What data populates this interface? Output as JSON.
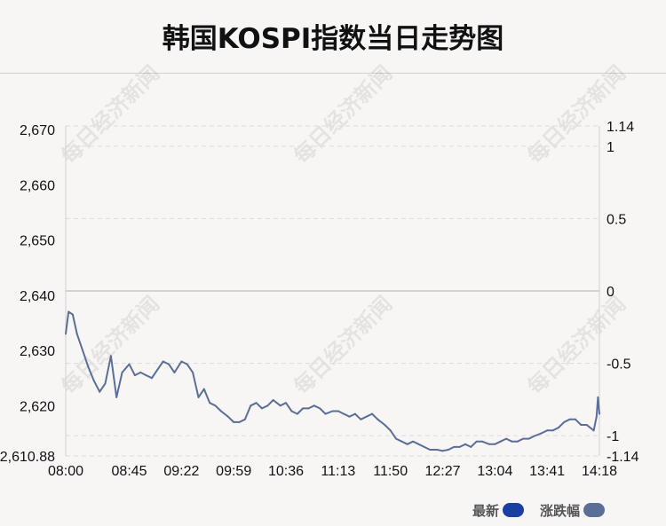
{
  "title": "韩国KOSPI指数当日走势图",
  "watermark": "每日经济新闻",
  "legend": [
    {
      "label": "最新",
      "color": "#1a3fa3"
    },
    {
      "label": "涨跌幅",
      "color": "#5b6f96"
    }
  ],
  "chart_data": {
    "type": "line",
    "title": "韩国KOSPI指数当日走势图",
    "x_ticks": [
      "08:00",
      "08:45",
      "09:22",
      "09:59",
      "10:36",
      "11:13",
      "11:50",
      "12:27",
      "13:04",
      "13:41",
      "14:18"
    ],
    "y_left_ticks": [
      "2,670",
      "2,660",
      "2,650",
      "2,640",
      "2,630",
      "2,620",
      "2,610.88"
    ],
    "y_right_ticks": [
      "1.14",
      "1",
      "0.5",
      "0",
      "-0.5",
      "-1",
      "-1.14"
    ],
    "ylim": [
      2610.88,
      2670.68
    ],
    "ylim_right": [
      -1.14,
      1.14
    ],
    "prev_close": 2640.78,
    "grid": true,
    "legend_position": "bottom-right",
    "series": [
      {
        "name": "最新",
        "color": "#5b6f96",
        "x": [
          "08:00",
          "08:02",
          "08:05",
          "08:08",
          "08:12",
          "08:16",
          "08:20",
          "08:24",
          "08:28",
          "08:32",
          "08:36",
          "08:40",
          "08:45",
          "08:49",
          "08:53",
          "08:57",
          "09:01",
          "09:05",
          "09:09",
          "09:13",
          "09:17",
          "09:22",
          "09:26",
          "09:30",
          "09:34",
          "09:38",
          "09:42",
          "09:46",
          "09:50",
          "09:55",
          "09:59",
          "10:03",
          "10:07",
          "10:11",
          "10:15",
          "10:19",
          "10:23",
          "10:27",
          "10:32",
          "10:36",
          "10:40",
          "10:44",
          "10:48",
          "10:52",
          "10:56",
          "11:00",
          "11:04",
          "11:09",
          "11:13",
          "11:17",
          "11:21",
          "11:25",
          "11:29",
          "11:33",
          "11:37",
          "11:41",
          "11:46",
          "11:50",
          "11:54",
          "11:58",
          "12:02",
          "12:06",
          "12:10",
          "12:14",
          "12:18",
          "12:23",
          "12:27",
          "12:31",
          "12:35",
          "12:39",
          "12:43",
          "12:47",
          "12:51",
          "12:55",
          "13:00",
          "13:04",
          "13:08",
          "13:12",
          "13:16",
          "13:20",
          "13:24",
          "13:28",
          "13:32",
          "13:37",
          "13:41",
          "13:45",
          "13:49",
          "13:53",
          "13:57",
          "14:01",
          "14:05",
          "14:09",
          "14:14",
          "14:16",
          "14:17",
          "14:18"
        ],
        "values": [
          2633.0,
          2637.0,
          2636.5,
          2633.0,
          2630.0,
          2627.0,
          2624.5,
          2622.5,
          2624.0,
          2629.0,
          2621.5,
          2626.0,
          2627.5,
          2625.5,
          2626.0,
          2625.5,
          2625.0,
          2626.5,
          2628.0,
          2627.5,
          2626.0,
          2628.0,
          2627.5,
          2626.0,
          2621.5,
          2623.0,
          2620.5,
          2620.0,
          2619.0,
          2618.0,
          2617.0,
          2617.0,
          2617.5,
          2620.0,
          2620.5,
          2619.5,
          2620.0,
          2621.0,
          2620.0,
          2620.5,
          2619.0,
          2618.5,
          2619.5,
          2619.5,
          2620.0,
          2619.5,
          2618.5,
          2619.0,
          2619.0,
          2618.5,
          2618.0,
          2618.5,
          2617.5,
          2618.0,
          2618.5,
          2617.5,
          2616.5,
          2615.5,
          2614.0,
          2613.5,
          2613.0,
          2613.5,
          2613.0,
          2612.5,
          2612.0,
          2612.0,
          2611.8,
          2612.0,
          2612.5,
          2612.5,
          2613.0,
          2612.5,
          2613.5,
          2613.5,
          2613.0,
          2613.0,
          2613.5,
          2614.0,
          2613.5,
          2613.5,
          2614.0,
          2614.0,
          2614.5,
          2615.0,
          2615.5,
          2615.5,
          2616.0,
          2617.0,
          2617.5,
          2617.5,
          2616.5,
          2616.5,
          2615.5,
          2618.0,
          2621.5,
          2618.5
        ]
      }
    ]
  }
}
